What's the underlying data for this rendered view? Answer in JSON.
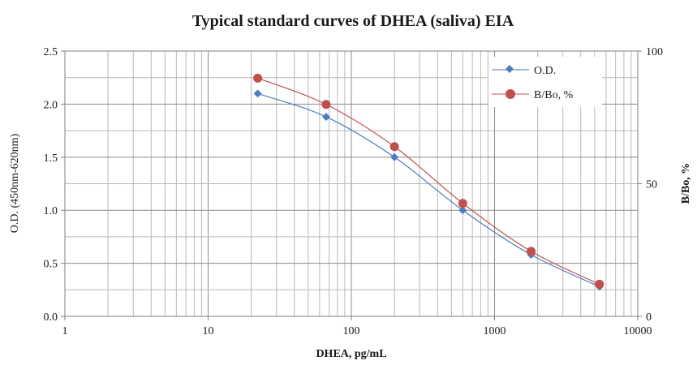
{
  "chart_data": {
    "type": "line",
    "title": "Typical standard curves of DHEA (saliva) EIA",
    "xlabel": "DHEA, pg/mL",
    "ylabel": "O.D. (450nm-620nm)",
    "y2label": "B/Bo, %",
    "x_scale": "log",
    "xlim": [
      1,
      10000
    ],
    "ylim": [
      0,
      2.5
    ],
    "y2lim": [
      0,
      100
    ],
    "x_ticks": [
      "1",
      "10",
      "100",
      "1000",
      "10000"
    ],
    "y_ticks": [
      "0.0",
      "0.5",
      "1.0",
      "1.5",
      "2.0",
      "2.5"
    ],
    "y2_ticks": [
      "0",
      "50",
      "100"
    ],
    "grid": true,
    "legend_position": "top-right",
    "x": [
      22.2,
      66.7,
      200,
      600,
      1800,
      5400
    ],
    "series": [
      {
        "name": "O.D.",
        "axis": "left",
        "marker": "diamond",
        "color": "#4a7ebb",
        "values": [
          2.1,
          1.88,
          1.5,
          1.0,
          0.58,
          0.28
        ]
      },
      {
        "name": "B/Bo, %",
        "axis": "right",
        "marker": "circle",
        "color": "#c0504d",
        "values": [
          89.8,
          79.9,
          64.0,
          42.6,
          24.5,
          12.1
        ]
      }
    ]
  }
}
